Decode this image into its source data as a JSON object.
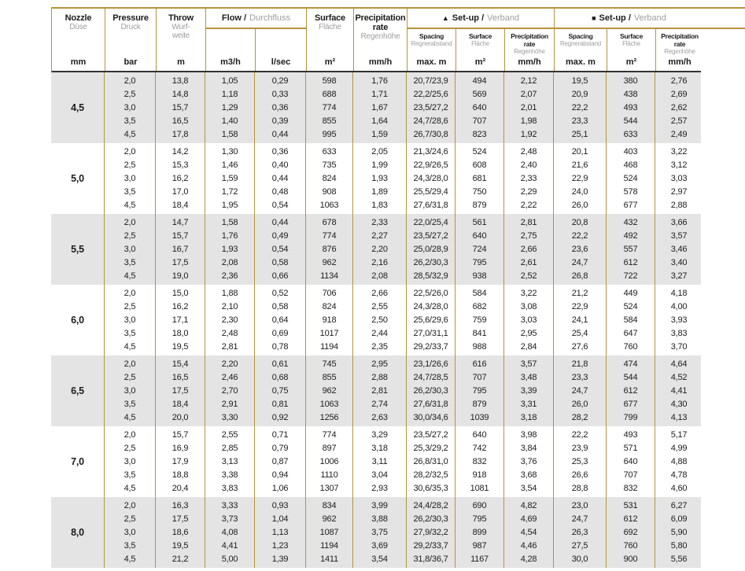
{
  "colors": {
    "border_gold": "#b5943a",
    "header_separator": "#333333",
    "shade_row": "#e4e4e4",
    "text_dark": "#1c1c1c",
    "text_gray": "#9e9e9e"
  },
  "header": {
    "simple_columns": [
      {
        "en": "Nozzle",
        "de": "Düse",
        "unit": "mm"
      },
      {
        "en": "Pressure",
        "de": "Druck",
        "unit": "bar"
      },
      {
        "en": "Throw",
        "de": "Wurf-\nweite",
        "unit": "m"
      }
    ],
    "flow": {
      "en": "Flow /",
      "de": "Durchfluss",
      "units": [
        "m3/h",
        "l/sec"
      ]
    },
    "surface": {
      "en": "Surface",
      "de": "Fläche",
      "unit": "m²"
    },
    "precip": {
      "en": "Precipitation\nrate",
      "de": "Regenhöhe",
      "unit": "mm/h"
    },
    "setups": [
      {
        "icon": "▲",
        "en": "Set-up /",
        "de": "Verband",
        "sub": [
          {
            "en": "Spacing",
            "de": "Regnerabstand",
            "unit": "max. m"
          },
          {
            "en": "Surface",
            "de": "Fläche",
            "unit": "m²"
          },
          {
            "en": "Precipitation rate",
            "de": "Regenhöhe",
            "unit": "mm/h"
          }
        ]
      },
      {
        "icon": "■",
        "en": "Set-up /",
        "de": "Verband",
        "sub": [
          {
            "en": "Spacing",
            "de": "Regnerabstand",
            "unit": "max. m"
          },
          {
            "en": "Surface",
            "de": "Fläche",
            "unit": "m²"
          },
          {
            "en": "Precipitation rate",
            "de": "Regenhöhe",
            "unit": "mm/h"
          }
        ]
      }
    ]
  },
  "groups": [
    {
      "nozzle": "4,5",
      "rows": [
        [
          "2,0",
          "13,8",
          "1,05",
          "0,29",
          "598",
          "1,76",
          "20,7/23,9",
          "494",
          "2,12",
          "19,5",
          "380",
          "2,76"
        ],
        [
          "2,5",
          "14,8",
          "1,18",
          "0,33",
          "688",
          "1,71",
          "22,2/25,6",
          "569",
          "2,07",
          "20,9",
          "438",
          "2,69"
        ],
        [
          "3,0",
          "15,7",
          "1,29",
          "0,36",
          "774",
          "1,67",
          "23,5/27,2",
          "640",
          "2,01",
          "22,2",
          "493",
          "2,62"
        ],
        [
          "3,5",
          "16,5",
          "1,40",
          "0,39",
          "855",
          "1,64",
          "24,7/28,6",
          "707",
          "1,98",
          "23,3",
          "544",
          "2,57"
        ],
        [
          "4,5",
          "17,8",
          "1,58",
          "0,44",
          "995",
          "1,59",
          "26,7/30,8",
          "823",
          "1,92",
          "25,1",
          "633",
          "2,49"
        ]
      ]
    },
    {
      "nozzle": "5,0",
      "rows": [
        [
          "2,0",
          "14,2",
          "1,30",
          "0,36",
          "633",
          "2,05",
          "21,3/24,6",
          "524",
          "2,48",
          "20,1",
          "403",
          "3,22"
        ],
        [
          "2,5",
          "15,3",
          "1,46",
          "0,40",
          "735",
          "1,99",
          "22,9/26,5",
          "608",
          "2,40",
          "21,6",
          "468",
          "3,12"
        ],
        [
          "3,0",
          "16,2",
          "1,59",
          "0,44",
          "824",
          "1,93",
          "24,3/28,0",
          "681",
          "2,33",
          "22,9",
          "524",
          "3,03"
        ],
        [
          "3,5",
          "17,0",
          "1,72",
          "0,48",
          "908",
          "1,89",
          "25,5/29,4",
          "750",
          "2,29",
          "24,0",
          "578",
          "2,97"
        ],
        [
          "4,5",
          "18,4",
          "1,95",
          "0,54",
          "1063",
          "1,83",
          "27,6/31,8",
          "879",
          "2,22",
          "26,0",
          "677",
          "2,88"
        ]
      ]
    },
    {
      "nozzle": "5,5",
      "rows": [
        [
          "2,0",
          "14,7",
          "1,58",
          "0,44",
          "678",
          "2,33",
          "22,0/25,4",
          "561",
          "2,81",
          "20,8",
          "432",
          "3,66"
        ],
        [
          "2,5",
          "15,7",
          "1,76",
          "0,49",
          "774",
          "2,27",
          "23,5/27,2",
          "640",
          "2,75",
          "22,2",
          "492",
          "3,57"
        ],
        [
          "3,0",
          "16,7",
          "1,93",
          "0,54",
          "876",
          "2,20",
          "25,0/28,9",
          "724",
          "2,66",
          "23,6",
          "557",
          "3,46"
        ],
        [
          "3,5",
          "17,5",
          "2,08",
          "0,58",
          "962",
          "2,16",
          "26,2/30,3",
          "795",
          "2,61",
          "24,7",
          "612",
          "3,40"
        ],
        [
          "4,5",
          "19,0",
          "2,36",
          "0,66",
          "1134",
          "2,08",
          "28,5/32,9",
          "938",
          "2,52",
          "26,8",
          "722",
          "3,27"
        ]
      ]
    },
    {
      "nozzle": "6,0",
      "rows": [
        [
          "2,0",
          "15,0",
          "1,88",
          "0,52",
          "706",
          "2,66",
          "22,5/26,0",
          "584",
          "3,22",
          "21,2",
          "449",
          "4,18"
        ],
        [
          "2,5",
          "16,2",
          "2,10",
          "0,58",
          "824",
          "2,55",
          "24,3/28,0",
          "682",
          "3,08",
          "22,9",
          "524",
          "4,00"
        ],
        [
          "3,0",
          "17,1",
          "2,30",
          "0,64",
          "918",
          "2,50",
          "25,6/29,6",
          "759",
          "3,03",
          "24,1",
          "584",
          "3,93"
        ],
        [
          "3,5",
          "18,0",
          "2,48",
          "0,69",
          "1017",
          "2,44",
          "27,0/31,1",
          "841",
          "2,95",
          "25,4",
          "647",
          "3,83"
        ],
        [
          "4,5",
          "19,5",
          "2,81",
          "0,78",
          "1194",
          "2,35",
          "29,2/33,7",
          "988",
          "2,84",
          "27,6",
          "760",
          "3,70"
        ]
      ]
    },
    {
      "nozzle": "6,5",
      "rows": [
        [
          "2,0",
          "15,4",
          "2,20",
          "0,61",
          "745",
          "2,95",
          "23,1/26,6",
          "616",
          "3,57",
          "21,8",
          "474",
          "4,64"
        ],
        [
          "2,5",
          "16,5",
          "2,46",
          "0,68",
          "855",
          "2,88",
          "24,7/28,5",
          "707",
          "3,48",
          "23,3",
          "544",
          "4,52"
        ],
        [
          "3,0",
          "17,5",
          "2,70",
          "0,75",
          "962",
          "2,81",
          "26,2/30,3",
          "795",
          "3,39",
          "24,7",
          "612",
          "4,41"
        ],
        [
          "3,5",
          "18,4",
          "2,91",
          "0,81",
          "1063",
          "2,74",
          "27,6/31,8",
          "879",
          "3,31",
          "26,0",
          "677",
          "4,30"
        ],
        [
          "4,5",
          "20,0",
          "3,30",
          "0,92",
          "1256",
          "2,63",
          "30,0/34,6",
          "1039",
          "3,18",
          "28,2",
          "799",
          "4,13"
        ]
      ]
    },
    {
      "nozzle": "7,0",
      "rows": [
        [
          "2,0",
          "15,7",
          "2,55",
          "0,71",
          "774",
          "3,29",
          "23,5/27,2",
          "640",
          "3,98",
          "22,2",
          "493",
          "5,17"
        ],
        [
          "2,5",
          "16,9",
          "2,85",
          "0,79",
          "897",
          "3,18",
          "25,3/29,2",
          "742",
          "3,84",
          "23,9",
          "571",
          "4,99"
        ],
        [
          "3,0",
          "17,9",
          "3,13",
          "0,87",
          "1006",
          "3,11",
          "26,8/31,0",
          "832",
          "3,76",
          "25,3",
          "640",
          "4,88"
        ],
        [
          "3,5",
          "18,8",
          "3,38",
          "0,94",
          "1110",
          "3,04",
          "28,2/32,5",
          "918",
          "3,68",
          "26,6",
          "707",
          "4,78"
        ],
        [
          "4,5",
          "20,4",
          "3,83",
          "1,06",
          "1307",
          "2,93",
          "30,6/35,3",
          "1081",
          "3,54",
          "28,8",
          "832",
          "4,60"
        ]
      ]
    },
    {
      "nozzle": "8,0",
      "rows": [
        [
          "2,0",
          "16,3",
          "3,33",
          "0,93",
          "834",
          "3,99",
          "24,4/28,2",
          "690",
          "4,82",
          "23,0",
          "531",
          "6,27"
        ],
        [
          "2,5",
          "17,5",
          "3,73",
          "1,04",
          "962",
          "3,88",
          "26,2/30,3",
          "795",
          "4,69",
          "24,7",
          "612",
          "6,09"
        ],
        [
          "3,0",
          "18,6",
          "4,08",
          "1,13",
          "1087",
          "3,75",
          "27,9/32,2",
          "899",
          "4,54",
          "26,3",
          "692",
          "5,90"
        ],
        [
          "3,5",
          "19,5",
          "4,41",
          "1,23",
          "1194",
          "3,69",
          "29,2/33,7",
          "987",
          "4,46",
          "27,5",
          "760",
          "5,80"
        ],
        [
          "4,5",
          "21,2",
          "5,00",
          "1,39",
          "1411",
          "3,54",
          "31,8/36,7",
          "1167",
          "4,28",
          "30,0",
          "900",
          "5,56"
        ]
      ]
    }
  ]
}
